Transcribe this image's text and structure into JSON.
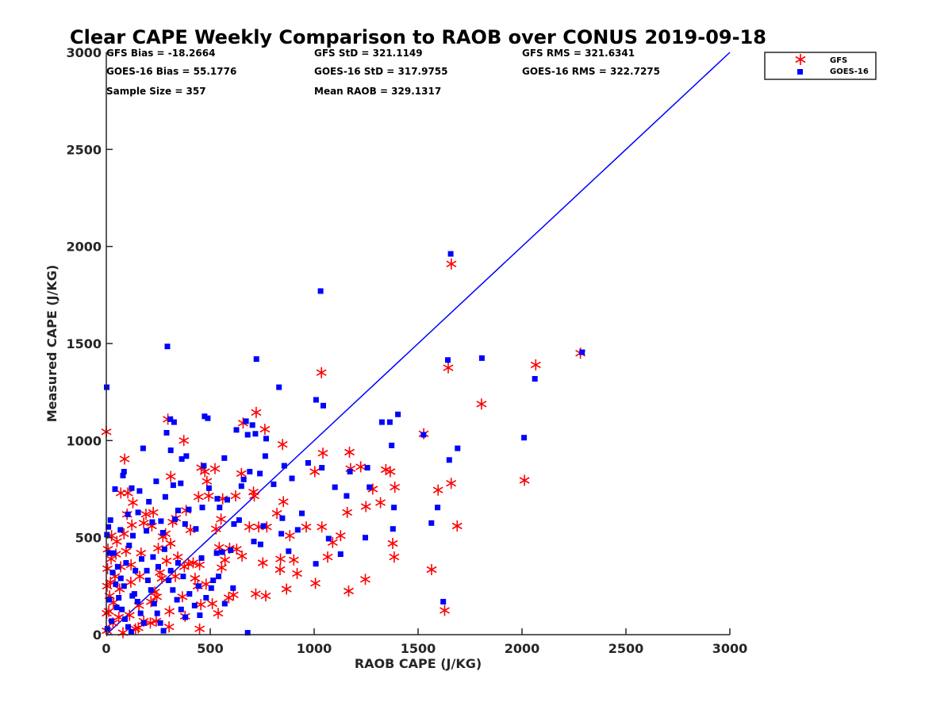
{
  "chart_data": {
    "type": "scatter",
    "title": "Clear CAPE Weekly Comparison to RAOB over CONUS 2019-09-18",
    "xlabel": "RAOB CAPE (J/KG)",
    "ylabel": "Measured CAPE (J/KG)",
    "xlim": [
      0,
      3000
    ],
    "ylim": [
      0,
      3000
    ],
    "xticks": [
      "0",
      "500",
      "1000",
      "1500",
      "2000",
      "2500",
      "3000"
    ],
    "yticks": [
      "0",
      "500",
      "1000",
      "1500",
      "2000",
      "2500",
      "3000"
    ],
    "grid": false,
    "legend_position": "top-right",
    "reference_line": {
      "x": [
        0,
        3000
      ],
      "y": [
        0,
        3000
      ],
      "color": "#0000ff"
    },
    "stats": [
      "GFS Bias = -18.2664",
      "GFS StD = 321.1149",
      "GFS RMS = 321.6341",
      "GOES-16 Bias = 55.1776",
      "GOES-16 StD = 317.9755",
      "GOES-16 RMS = 322.7275",
      "Sample Size = 357",
      "Mean RAOB = 329.1317"
    ],
    "series": [
      {
        "name": "GFS",
        "marker": "asterisk",
        "color": "#ff0000",
        "points": [
          [
            0,
            1045
          ],
          [
            296,
            1110
          ],
          [
            721,
            1145
          ],
          [
            763,
            1058
          ],
          [
            373,
            1000
          ],
          [
            1035,
            1350
          ],
          [
            1660,
            1910
          ],
          [
            2281,
            1450
          ],
          [
            2066,
            1390
          ],
          [
            1645,
            1375
          ],
          [
            1805,
            1188
          ],
          [
            1527,
            1035
          ],
          [
            2012,
            795
          ],
          [
            1659,
            780
          ],
          [
            1596,
            745
          ],
          [
            1688,
            560
          ],
          [
            1565,
            335
          ],
          [
            1628,
            125
          ],
          [
            1388,
            760
          ],
          [
            1378,
            470
          ],
          [
            1385,
            400
          ],
          [
            1345,
            850
          ],
          [
            1366,
            840
          ],
          [
            1319,
            680
          ],
          [
            1282,
            750
          ],
          [
            1249,
            660
          ],
          [
            1246,
            285
          ],
          [
            1224,
            865
          ],
          [
            1170,
            940
          ],
          [
            1175,
            855
          ],
          [
            1166,
            225
          ],
          [
            1159,
            630
          ],
          [
            1127,
            510
          ],
          [
            1089,
            475
          ],
          [
            1065,
            400
          ],
          [
            1042,
            935
          ],
          [
            1003,
            840
          ],
          [
            1037,
            555
          ],
          [
            1006,
            265
          ],
          [
            962,
            555
          ],
          [
            918,
            315
          ],
          [
            902,
            385
          ],
          [
            883,
            510
          ],
          [
            852,
            685
          ],
          [
            848,
            980
          ],
          [
            838,
            390
          ],
          [
            821,
            625
          ],
          [
            836,
            335
          ],
          [
            867,
            235
          ],
          [
            772,
            555
          ],
          [
            753,
            370
          ],
          [
            767,
            200
          ],
          [
            733,
            555
          ],
          [
            719,
            210
          ],
          [
            712,
            715
          ],
          [
            708,
            735
          ],
          [
            688,
            555
          ],
          [
            658,
            1090
          ],
          [
            650,
            830
          ],
          [
            622,
            715
          ],
          [
            653,
            405
          ],
          [
            593,
            445
          ],
          [
            612,
            205
          ],
          [
            571,
            385
          ],
          [
            560,
            700
          ],
          [
            552,
            595
          ],
          [
            543,
            450
          ],
          [
            555,
            345
          ],
          [
            528,
            545
          ],
          [
            523,
            855
          ],
          [
            493,
            715
          ],
          [
            484,
            790
          ],
          [
            474,
            840
          ],
          [
            457,
            860
          ],
          [
            444,
            710
          ],
          [
            449,
            360
          ],
          [
            455,
            155
          ],
          [
            449,
            30
          ],
          [
            427,
            290
          ],
          [
            418,
            370
          ],
          [
            405,
            540
          ],
          [
            384,
            640
          ],
          [
            375,
            350
          ],
          [
            366,
            195
          ],
          [
            379,
            95
          ],
          [
            344,
            400
          ],
          [
            335,
            600
          ],
          [
            319,
            580
          ],
          [
            310,
            815
          ],
          [
            309,
            470
          ],
          [
            290,
            380
          ],
          [
            304,
            120
          ],
          [
            302,
            40
          ],
          [
            285,
            520
          ],
          [
            272,
            505
          ],
          [
            258,
            320
          ],
          [
            250,
            445
          ],
          [
            243,
            195
          ],
          [
            240,
            70
          ],
          [
            226,
            630
          ],
          [
            219,
            560
          ],
          [
            215,
            170
          ],
          [
            212,
            60
          ],
          [
            191,
            620
          ],
          [
            180,
            575
          ],
          [
            167,
            420
          ],
          [
            161,
            300
          ],
          [
            157,
            150
          ],
          [
            154,
            35
          ],
          [
            128,
            680
          ],
          [
            123,
            565
          ],
          [
            119,
            360
          ],
          [
            118,
            270
          ],
          [
            112,
            100
          ],
          [
            104,
            730
          ],
          [
            100,
            620
          ],
          [
            95,
            430
          ],
          [
            88,
            905
          ],
          [
            85,
            520
          ],
          [
            70,
            730
          ],
          [
            69,
            350
          ],
          [
            64,
            235
          ],
          [
            60,
            90
          ],
          [
            51,
            480
          ],
          [
            46,
            415
          ],
          [
            42,
            300
          ],
          [
            34,
            165
          ],
          [
            32,
            60
          ],
          [
            25,
            510
          ],
          [
            23,
            390
          ],
          [
            20,
            270
          ],
          [
            16,
            200
          ],
          [
            12,
            120
          ],
          [
            8,
            440
          ],
          [
            6,
            340
          ],
          [
            4,
            250
          ],
          [
            2,
            110
          ],
          [
            2,
            20
          ],
          [
            80,
            10
          ],
          [
            140,
            30
          ],
          [
            180,
            70
          ],
          [
            234,
            220
          ],
          [
            267,
            290
          ],
          [
            332,
            300
          ],
          [
            395,
            365
          ],
          [
            440,
            250
          ],
          [
            480,
            260
          ],
          [
            510,
            160
          ],
          [
            538,
            110
          ],
          [
            589,
            190
          ],
          [
            627,
            440
          ]
        ]
      },
      {
        "name": "GOES-16",
        "marker": "square",
        "color": "#0000ff",
        "points": [
          [
            2,
            1275
          ],
          [
            294,
            1485
          ],
          [
            722,
            1420
          ],
          [
            1031,
            1770
          ],
          [
            1657,
            1962
          ],
          [
            2289,
            1455
          ],
          [
            2062,
            1318
          ],
          [
            1643,
            1415
          ],
          [
            1807,
            1425
          ],
          [
            1526,
            1030
          ],
          [
            2010,
            1015
          ],
          [
            1690,
            960
          ],
          [
            1650,
            900
          ],
          [
            1594,
            655
          ],
          [
            1564,
            575
          ],
          [
            1621,
            170
          ],
          [
            1403,
            1135
          ],
          [
            1364,
            1095
          ],
          [
            1326,
            1095
          ],
          [
            1373,
            975
          ],
          [
            1384,
            655
          ],
          [
            1379,
            545
          ],
          [
            1256,
            860
          ],
          [
            1266,
            760
          ],
          [
            1246,
            500
          ],
          [
            1172,
            840
          ],
          [
            1156,
            715
          ],
          [
            1127,
            415
          ],
          [
            1100,
            760
          ],
          [
            1070,
            495
          ],
          [
            1044,
            1180
          ],
          [
            1009,
            1210
          ],
          [
            1037,
            860
          ],
          [
            1008,
            365
          ],
          [
            971,
            885
          ],
          [
            941,
            625
          ],
          [
            921,
            540
          ],
          [
            893,
            805
          ],
          [
            877,
            430
          ],
          [
            856,
            870
          ],
          [
            847,
            600
          ],
          [
            831,
            1275
          ],
          [
            842,
            520
          ],
          [
            805,
            775
          ],
          [
            769,
            1010
          ],
          [
            765,
            920
          ],
          [
            739,
            830
          ],
          [
            756,
            560
          ],
          [
            742,
            465
          ],
          [
            717,
            1035
          ],
          [
            703,
            1080
          ],
          [
            690,
            840
          ],
          [
            710,
            480
          ],
          [
            672,
            1100
          ],
          [
            680,
            1030
          ],
          [
            661,
            800
          ],
          [
            650,
            765
          ],
          [
            639,
            590
          ],
          [
            626,
            1055
          ],
          [
            614,
            570
          ],
          [
            598,
            435
          ],
          [
            582,
            695
          ],
          [
            568,
            910
          ],
          [
            558,
            425
          ],
          [
            545,
            655
          ],
          [
            534,
            700
          ],
          [
            531,
            420
          ],
          [
            514,
            280
          ],
          [
            494,
            755
          ],
          [
            488,
            1115
          ],
          [
            473,
            1125
          ],
          [
            469,
            870
          ],
          [
            462,
            655
          ],
          [
            458,
            395
          ],
          [
            444,
            250
          ],
          [
            431,
            545
          ],
          [
            397,
            645
          ],
          [
            385,
            920
          ],
          [
            379,
            570
          ],
          [
            363,
            905
          ],
          [
            358,
            780
          ],
          [
            345,
            640
          ],
          [
            326,
            1095
          ],
          [
            322,
            770
          ],
          [
            331,
            595
          ],
          [
            308,
            1110
          ],
          [
            310,
            950
          ],
          [
            290,
            1040
          ],
          [
            284,
            710
          ],
          [
            272,
            525
          ],
          [
            263,
            585
          ],
          [
            240,
            790
          ],
          [
            221,
            580
          ],
          [
            205,
            685
          ],
          [
            193,
            535
          ],
          [
            177,
            960
          ],
          [
            160,
            740
          ],
          [
            153,
            630
          ],
          [
            122,
            755
          ],
          [
            128,
            510
          ],
          [
            104,
            620
          ],
          [
            85,
            840
          ],
          [
            80,
            820
          ],
          [
            68,
            540
          ],
          [
            42,
            750
          ],
          [
            20,
            590
          ],
          [
            10,
            555
          ],
          [
            3,
            515
          ],
          [
            15,
            420
          ],
          [
            30,
            320
          ],
          [
            45,
            260
          ],
          [
            60,
            190
          ],
          [
            75,
            130
          ],
          [
            90,
            80
          ],
          [
            105,
            40
          ],
          [
            120,
            15
          ],
          [
            135,
            210
          ],
          [
            150,
            170
          ],
          [
            165,
            110
          ],
          [
            180,
            60
          ],
          [
            200,
            280
          ],
          [
            215,
            230
          ],
          [
            230,
            160
          ],
          [
            245,
            110
          ],
          [
            260,
            60
          ],
          [
            275,
            20
          ],
          [
            300,
            280
          ],
          [
            320,
            230
          ],
          [
            340,
            180
          ],
          [
            360,
            130
          ],
          [
            380,
            90
          ],
          [
            400,
            210
          ],
          [
            425,
            150
          ],
          [
            450,
            100
          ],
          [
            480,
            190
          ],
          [
            505,
            240
          ],
          [
            540,
            300
          ],
          [
            570,
            160
          ],
          [
            610,
            240
          ],
          [
            680,
            10
          ],
          [
            5,
            30
          ],
          [
            25,
            70
          ],
          [
            50,
            140
          ],
          [
            70,
            290
          ],
          [
            95,
            370
          ],
          [
            110,
            460
          ],
          [
            140,
            330
          ],
          [
            170,
            390
          ],
          [
            195,
            330
          ],
          [
            225,
            400
          ],
          [
            250,
            350
          ],
          [
            280,
            440
          ],
          [
            310,
            330
          ],
          [
            345,
            370
          ],
          [
            370,
            300
          ],
          [
            15,
            180
          ],
          [
            35,
            420
          ],
          [
            55,
            350
          ],
          [
            85,
            250
          ],
          [
            125,
            200
          ]
        ]
      }
    ]
  }
}
